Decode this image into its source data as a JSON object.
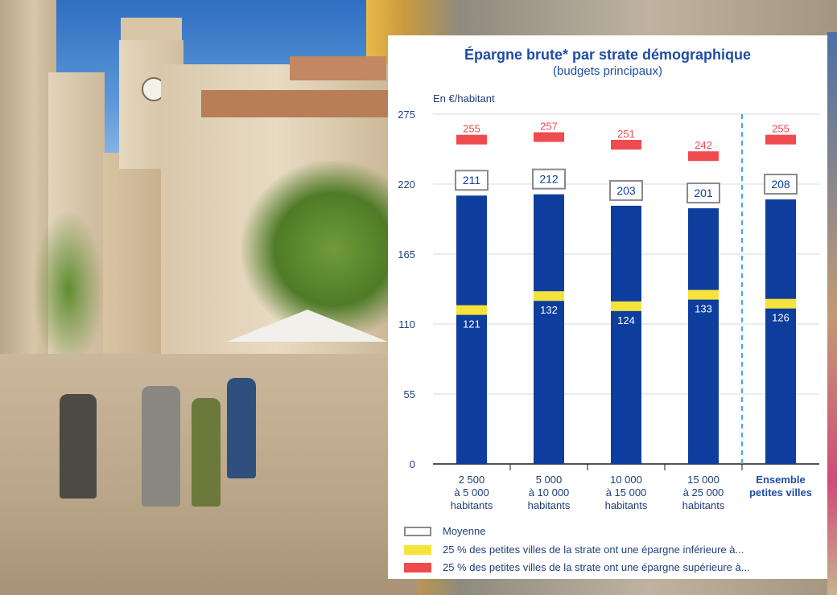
{
  "title": "Épargne brute* par strate démographique",
  "subtitle": "(budgets principaux)",
  "unit_label": "En €/habitant",
  "colors": {
    "bar": "#0d3e9e",
    "average_outline": "#8a8a8a",
    "lower_quartile": "#f5e33b",
    "upper_quartile": "#ef4a4e",
    "axis_text": "#1f3f7a",
    "grid": "#d5d9e2",
    "separator": "#49a9dd"
  },
  "chart_data": {
    "type": "bar",
    "title": "Épargne brute* par strate démographique",
    "subtitle": "(budgets principaux)",
    "ylabel": "En €/habitant",
    "xlabel": "",
    "ylim": [
      0,
      275
    ],
    "yticks": [
      0,
      55,
      110,
      165,
      220,
      275
    ],
    "grid": true,
    "legend_position": "bottom",
    "categories": [
      [
        "2 500",
        "à 5 000",
        "habitants"
      ],
      [
        "5 000",
        "à 10 000",
        "habitants"
      ],
      [
        "10 000",
        "à 15 000",
        "habitants"
      ],
      [
        "15 000",
        "à 25 000",
        "habitants"
      ],
      [
        "Ensemble",
        "petites villes"
      ]
    ],
    "bold_categories": [
      false,
      false,
      false,
      false,
      true
    ],
    "separator_before_index": 4,
    "series": [
      {
        "name": "Moyenne",
        "values": [
          211,
          212,
          203,
          201,
          208
        ]
      },
      {
        "name": "25 % des petites villes de la strate ont une épargne inférieure à...",
        "values": [
          121,
          132,
          124,
          133,
          126
        ]
      },
      {
        "name": "25 % des petites villes de la strate ont une épargne supérieure à...",
        "values": [
          255,
          257,
          251,
          242,
          255
        ]
      }
    ]
  },
  "legend": [
    {
      "label": "Moyenne",
      "kind": "average"
    },
    {
      "label": "25 % des petites villes de la strate ont une épargne inférieure à...",
      "kind": "lower"
    },
    {
      "label": "25 % des petites villes de la strate ont une épargne supérieure à...",
      "kind": "upper"
    }
  ]
}
